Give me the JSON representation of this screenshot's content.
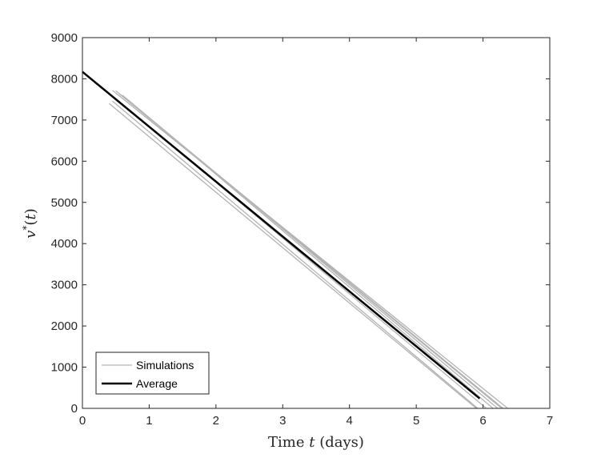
{
  "chart_data": {
    "type": "line",
    "xlabel": "Time t (days)",
    "ylabel": "v*(t)",
    "xlim": [
      0,
      7
    ],
    "ylim": [
      0,
      9000
    ],
    "xticks": [
      0,
      1,
      2,
      3,
      4,
      5,
      6,
      7
    ],
    "yticks": [
      0,
      1000,
      2000,
      3000,
      4000,
      5000,
      6000,
      7000,
      8000,
      9000
    ],
    "grid": false,
    "legend_position": "bottom-left",
    "series": [
      {
        "name": "Simulations",
        "color": "#b3b3b3",
        "runs": [
          {
            "x": [
              0.45,
              6.37
            ],
            "y": [
              7720,
              0
            ]
          },
          {
            "x": [
              0.5,
              6.3
            ],
            "y": [
              7710,
              0
            ]
          },
          {
            "x": [
              0.55,
              6.28
            ],
            "y": [
              7640,
              0
            ]
          },
          {
            "x": [
              0.6,
              6.22
            ],
            "y": [
              7600,
              0
            ]
          },
          {
            "x": [
              0.65,
              6.15
            ],
            "y": [
              7530,
              0
            ]
          },
          {
            "x": [
              0.5,
              6.05
            ],
            "y": [
              7520,
              0
            ]
          },
          {
            "x": [
              0.45,
              5.92
            ],
            "y": [
              7460,
              0
            ]
          },
          {
            "x": [
              0.4,
              5.9
            ],
            "y": [
              7400,
              0
            ]
          }
        ]
      },
      {
        "name": "Average",
        "color": "#000000",
        "x": [
          0,
          5.95
        ],
        "y": [
          8170,
          240
        ]
      }
    ]
  }
}
